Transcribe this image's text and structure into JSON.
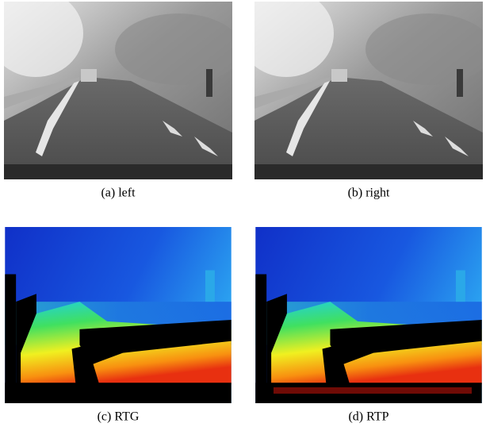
{
  "figure": {
    "panels": [
      {
        "caption": "(a) left"
      },
      {
        "caption": "(b) right"
      },
      {
        "caption": "(c) RTG"
      },
      {
        "caption": "(d) RTP"
      }
    ]
  }
}
